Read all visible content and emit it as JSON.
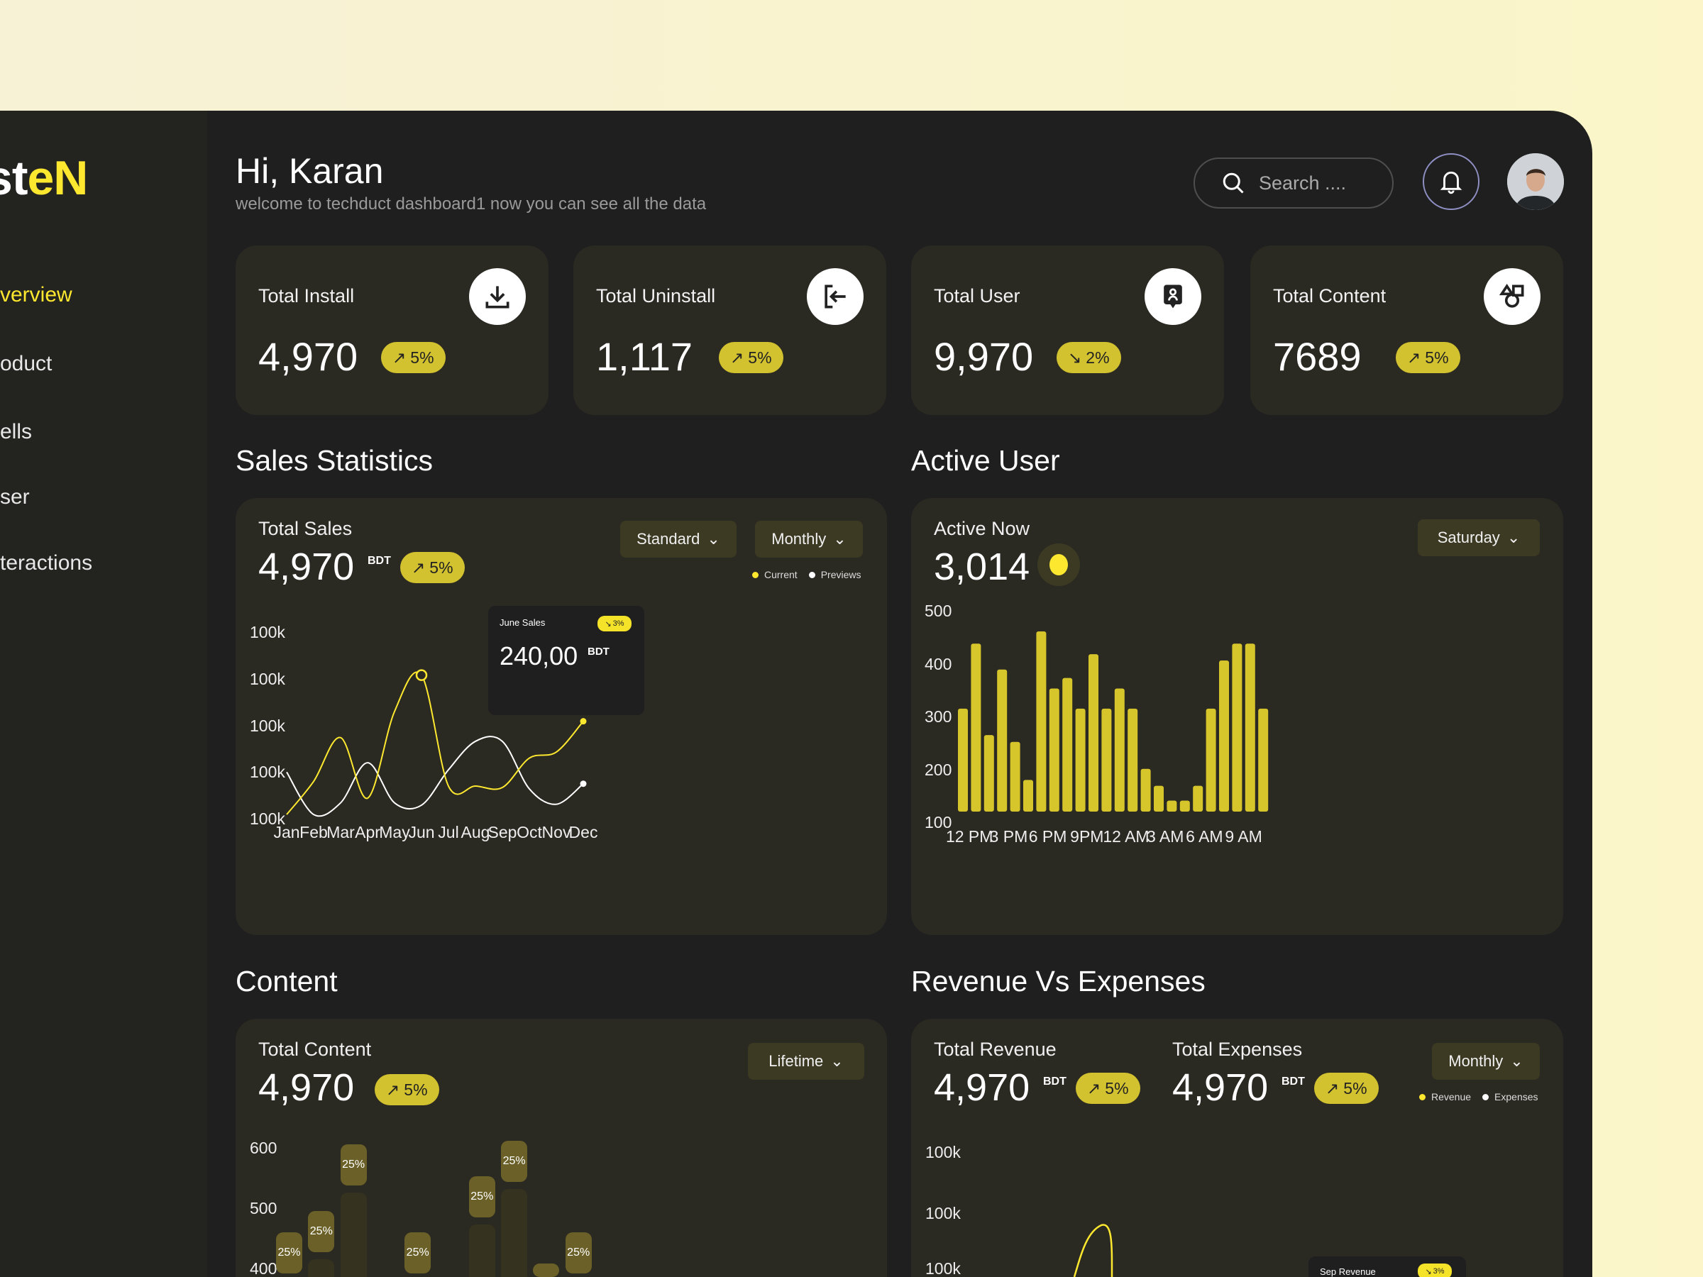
{
  "colors": {
    "accent": "#fde82f",
    "badge": "#d3c22f",
    "bar": "#d7c62b",
    "panel": "#1f1f1f",
    "card": "#2a2922",
    "dropdown": "#3d3a24"
  },
  "sidebar": {
    "logo": {
      "white": "st",
      "yellow": "eN"
    },
    "items": [
      {
        "label": "verview",
        "active": true
      },
      {
        "label": "oduct"
      },
      {
        "label": "ells"
      },
      {
        "label": "ser"
      },
      {
        "label": "teractions"
      }
    ]
  },
  "header": {
    "greeting": "Hi, Karan",
    "subtitle": "welcome to techduct dashboard1 now you can see all the data",
    "search_placeholder": "Search ....",
    "icons": [
      "search-icon",
      "bell-icon",
      "avatar"
    ]
  },
  "stats": [
    {
      "label": "Total Install",
      "value": "4,970",
      "badge": "5%",
      "trend": "up",
      "icon": "download-icon"
    },
    {
      "label": "Total Uninstall",
      "value": "1,117",
      "badge": "5%",
      "trend": "up",
      "icon": "logout-icon"
    },
    {
      "label": "Total User",
      "value": "9,970",
      "badge": "2%",
      "trend": "down",
      "icon": "user-badge-icon"
    },
    {
      "label": "Total Content",
      "value": "7689",
      "badge": "5%",
      "trend": "up",
      "icon": "shapes-icon"
    }
  ],
  "sales": {
    "section": "Sales Statistics",
    "title": "Total Sales",
    "value": "4,970",
    "unit": "BDT",
    "badge": "5%",
    "dropdowns": [
      "Standard",
      "Monthly"
    ],
    "legend": [
      "Current",
      "Previews"
    ],
    "tooltip": {
      "label": "June Sales",
      "badge": "3%",
      "value": "240,00",
      "unit": "BDT"
    }
  },
  "active": {
    "section": "Active User",
    "title": "Active Now",
    "value": "3,014",
    "dropdown": "Saturday"
  },
  "content": {
    "section": "Content",
    "title": "Total Content",
    "value": "4,970",
    "badge": "5%",
    "dropdown": "Lifetime"
  },
  "revenue": {
    "section": "Revenue Vs Expenses",
    "revenue_title": "Total Revenue",
    "revenue_value": "4,970",
    "revenue_badge": "5%",
    "expenses_title": "Total Expenses",
    "expenses_value": "4,970",
    "expenses_badge": "5%",
    "unit": "BDT",
    "dropdown": "Monthly",
    "legend": [
      "Revenue",
      "Expenses"
    ],
    "tooltip": {
      "label": "Sep Revenue",
      "badge": "3%"
    },
    "ylabels": [
      "100k",
      "100k",
      "100k"
    ]
  },
  "chart_data": [
    {
      "type": "line",
      "name": "sales-statistics",
      "categories": [
        "Jan",
        "Feb",
        "Mar",
        "Apr",
        "May",
        "Jun",
        "Jul",
        "Aug",
        "Sep",
        "Oct",
        "Nov",
        "Dec"
      ],
      "ytick_labels": [
        "100k",
        "100k",
        "100k",
        "100k",
        "100k"
      ],
      "ylim": [
        0,
        4
      ],
      "series": [
        {
          "name": "Current",
          "color": "#fde82f",
          "values": [
            0.09,
            0.8,
            1.74,
            0.44,
            2.3,
            3.08,
            0.7,
            0.7,
            0.67,
            1.3,
            1.43,
            2.09
          ]
        },
        {
          "name": "Previews",
          "color": "#ffffff",
          "values": [
            1.0,
            0.09,
            0.34,
            1.2,
            0.34,
            0.29,
            1.05,
            1.66,
            1.66,
            0.64,
            0.31,
            0.75
          ]
        }
      ],
      "highlight": "Jun"
    },
    {
      "type": "bar",
      "name": "active-user",
      "yticks": [
        500,
        400,
        300,
        200,
        100
      ],
      "ylim": [
        100,
        500
      ],
      "xtick_labels": [
        "12 PM",
        "3 PM",
        "6 PM",
        "9PM",
        "12 AM",
        "3 AM",
        "6 AM",
        "9 AM"
      ],
      "values": [
        315,
        438,
        265,
        389,
        252,
        180,
        461,
        353,
        373,
        315,
        418,
        315,
        353,
        315,
        201,
        169,
        141,
        141,
        169,
        315,
        406,
        438,
        438,
        315
      ]
    },
    {
      "type": "bar",
      "name": "content",
      "yticks": [
        600,
        500,
        400
      ],
      "values": [
        380,
        415,
        526,
        null,
        380,
        null,
        473,
        532,
        328,
        380
      ],
      "labels": [
        "25%",
        "25%",
        "25%",
        "",
        "25%",
        "",
        "25%",
        "25%",
        "",
        "25%"
      ]
    }
  ]
}
